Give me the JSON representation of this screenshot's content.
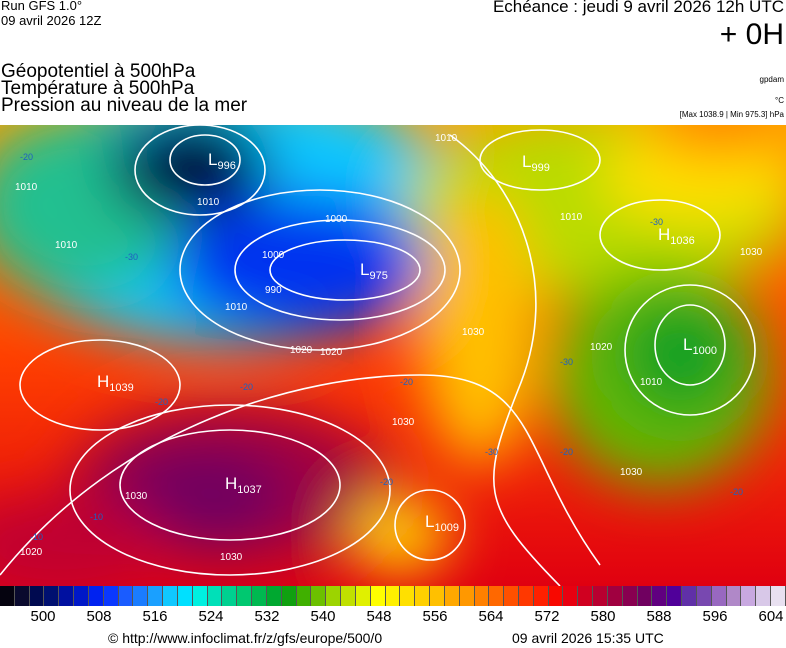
{
  "header": {
    "run": "Run GFS 1.0°",
    "run_date": "09 avril 2026 12Z",
    "echeance": "Echéance : jeudi 9 avril 2026 12h UTC",
    "lead": "+ 0H",
    "titles": [
      "Géopotentiel à 500hPa",
      "Température à 500hPa",
      "Pression au niveau de la mer"
    ],
    "units": [
      "gpdam",
      "°C",
      "[Max 1038.9 | Min 975.3] hPa"
    ]
  },
  "map": {
    "pressure_centers": [
      {
        "type": "L",
        "value": "996"
      },
      {
        "type": "L",
        "value": "975"
      },
      {
        "type": "L",
        "value": "999"
      },
      {
        "type": "H",
        "value": "1036"
      },
      {
        "type": "L",
        "value": "1000"
      },
      {
        "type": "H",
        "value": "1039"
      },
      {
        "type": "H",
        "value": "1037"
      },
      {
        "type": "L",
        "value": "1009"
      }
    ],
    "isobar_labels": [
      "1010",
      "1010",
      "1000",
      "1000",
      "990",
      "1010",
      "1020",
      "1010",
      "1030",
      "1020",
      "1030",
      "1030",
      "1030",
      "1030",
      "1020",
      "1010",
      "1020",
      "1010",
      "1030",
      "1010"
    ],
    "temperature_labels": [
      "-20",
      "-30",
      "-20",
      "-20",
      "-20",
      "-30",
      "-30",
      "-30",
      "-20",
      "-10",
      "-10",
      "-20",
      "-20"
    ]
  },
  "colorbar": {
    "colors": [
      "#05030f",
      "#0a0a2e",
      "#000a50",
      "#001070",
      "#0010a0",
      "#0018c8",
      "#0022f0",
      "#0a38ff",
      "#1a5cff",
      "#1a7cff",
      "#1aa0ff",
      "#10c8ff",
      "#00e0ff",
      "#00f0e0",
      "#00e0b8",
      "#00d090",
      "#00c870",
      "#00b850",
      "#00a830",
      "#10a010",
      "#40b000",
      "#6cc000",
      "#9cd400",
      "#c0e000",
      "#e0f000",
      "#ffff00",
      "#fff000",
      "#ffe000",
      "#ffd000",
      "#ffc000",
      "#ffa800",
      "#ff9800",
      "#ff8000",
      "#ff6800",
      "#ff5000",
      "#ff3800",
      "#ff2000",
      "#f80800",
      "#e80010",
      "#d00020",
      "#b80030",
      "#a00040",
      "#880050",
      "#700060",
      "#600080",
      "#50009a",
      "#6030a8",
      "#7848b0",
      "#9868c0",
      "#b088c8",
      "#c8a8e0",
      "#d8c8e8",
      "#e8e0f0"
    ],
    "ticks": [
      "500",
      "508",
      "516",
      "524",
      "532",
      "540",
      "548",
      "556",
      "564",
      "572",
      "580",
      "588",
      "596",
      "604"
    ]
  },
  "footer": {
    "url": "© http://www.infoclimat.fr/z/gfs/europe/500/0",
    "generated": "09 avril 2026 15:35 UTC"
  }
}
